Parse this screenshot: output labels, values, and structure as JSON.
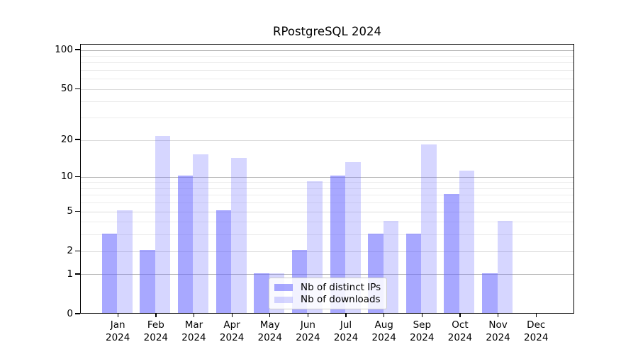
{
  "chart_data": {
    "type": "bar",
    "title": "RPostgreSQL 2024",
    "y_scale": "log1p",
    "ylim": [
      0,
      111
    ],
    "y_ticks": [
      0,
      1,
      2,
      5,
      10,
      20,
      50,
      100
    ],
    "grid": {
      "decade": [
        1,
        10,
        100
      ],
      "labeled": [
        2,
        5,
        20,
        50
      ],
      "minor": [
        3,
        4,
        6,
        7,
        8,
        9,
        30,
        40,
        60,
        70,
        80,
        90
      ]
    },
    "categories": [
      "Jan",
      "Feb",
      "Mar",
      "Apr",
      "May",
      "Jun",
      "Jul",
      "Aug",
      "Sep",
      "Oct",
      "Nov",
      "Dec"
    ],
    "year": "2024",
    "series": [
      {
        "name": "Nb of distinct IPs",
        "color": "rgba(102,102,255,0.57)",
        "values": [
          3,
          2,
          10,
          5,
          1,
          2,
          10,
          3,
          3,
          7,
          1,
          0
        ]
      },
      {
        "name": "Nb of downloads",
        "color": "rgba(102,102,255,0.27)",
        "values": [
          5,
          21,
          15,
          14,
          1,
          9,
          13,
          4,
          18,
          11,
          4,
          0
        ]
      }
    ],
    "legend_position": "lower center"
  }
}
